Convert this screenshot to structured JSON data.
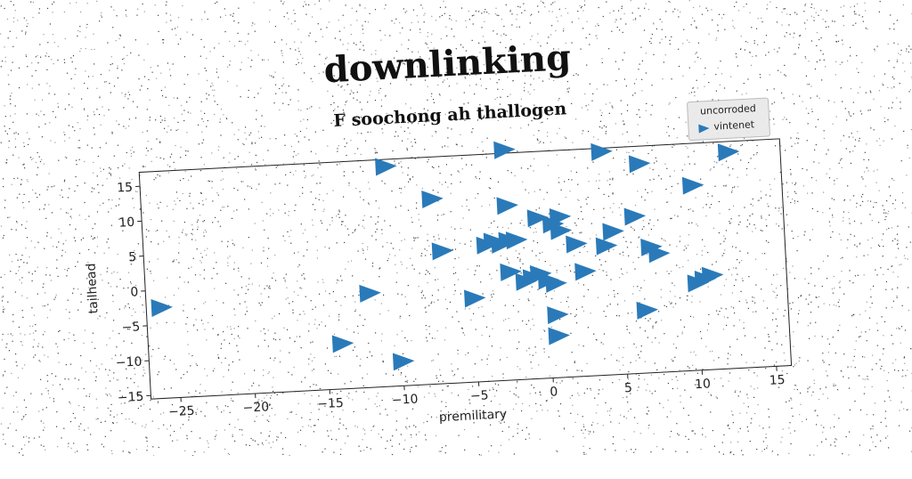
{
  "chart_data": {
    "type": "scatter",
    "title": "downlinking",
    "subtitle": "F soochong ah thallogen",
    "xlabel": "premilitary",
    "ylabel": "tailhead",
    "xlim": [
      -27,
      16
    ],
    "ylim": [
      -15.5,
      17
    ],
    "xticks": [
      -25,
      -20,
      -15,
      -10,
      -5,
      0,
      5,
      10,
      15
    ],
    "yticks": [
      15,
      10,
      5,
      0,
      -5,
      -10,
      -15
    ],
    "grid": false,
    "legend": {
      "title": "uncorroded",
      "placement": "top-right"
    },
    "series": [
      {
        "name": "vintenet",
        "marker": "triangle-right",
        "color": "#2a7ab9",
        "points": [
          {
            "x": -26.0,
            "y": -2.5
          },
          {
            "x": -14.0,
            "y": -9.0
          },
          {
            "x": -12.0,
            "y": -2.0
          },
          {
            "x": -10.5,
            "y": 16.0
          },
          {
            "x": -10.0,
            "y": -12.0
          },
          {
            "x": -7.5,
            "y": 11.0
          },
          {
            "x": -7.0,
            "y": 3.5
          },
          {
            "x": -5.0,
            "y": -3.5
          },
          {
            "x": -4.0,
            "y": 4.0
          },
          {
            "x": -3.5,
            "y": 4.5
          },
          {
            "x": -3.0,
            "y": 4.0
          },
          {
            "x": -2.5,
            "y": 4.5
          },
          {
            "x": -2.0,
            "y": 4.5
          },
          {
            "x": -2.5,
            "y": 17.5
          },
          {
            "x": -2.5,
            "y": 9.5
          },
          {
            "x": -2.5,
            "y": 0.0
          },
          {
            "x": -1.5,
            "y": -1.5
          },
          {
            "x": -1.0,
            "y": -1.0
          },
          {
            "x": -0.5,
            "y": -0.5
          },
          {
            "x": -0.5,
            "y": 7.5
          },
          {
            "x": 0.0,
            "y": -1.5
          },
          {
            "x": 0.5,
            "y": -2.0
          },
          {
            "x": 0.5,
            "y": 6.5
          },
          {
            "x": 1.0,
            "y": 5.5
          },
          {
            "x": 1.0,
            "y": 7.5
          },
          {
            "x": 0.5,
            "y": -6.5
          },
          {
            "x": 0.5,
            "y": -9.5
          },
          {
            "x": 2.0,
            "y": 3.5
          },
          {
            "x": 2.5,
            "y": -0.5
          },
          {
            "x": 4.0,
            "y": 3.0
          },
          {
            "x": 4.5,
            "y": 5.0
          },
          {
            "x": 4.0,
            "y": 16.5
          },
          {
            "x": 6.0,
            "y": 7.0
          },
          {
            "x": 6.5,
            "y": 14.5
          },
          {
            "x": 6.5,
            "y": -6.5
          },
          {
            "x": 7.0,
            "y": 2.5
          },
          {
            "x": 7.5,
            "y": 1.5
          },
          {
            "x": 10.0,
            "y": 11.0
          },
          {
            "x": 10.0,
            "y": -3.0
          },
          {
            "x": 10.5,
            "y": -2.5
          },
          {
            "x": 11.0,
            "y": -2.0
          },
          {
            "x": 12.5,
            "y": 15.5
          }
        ]
      }
    ]
  }
}
